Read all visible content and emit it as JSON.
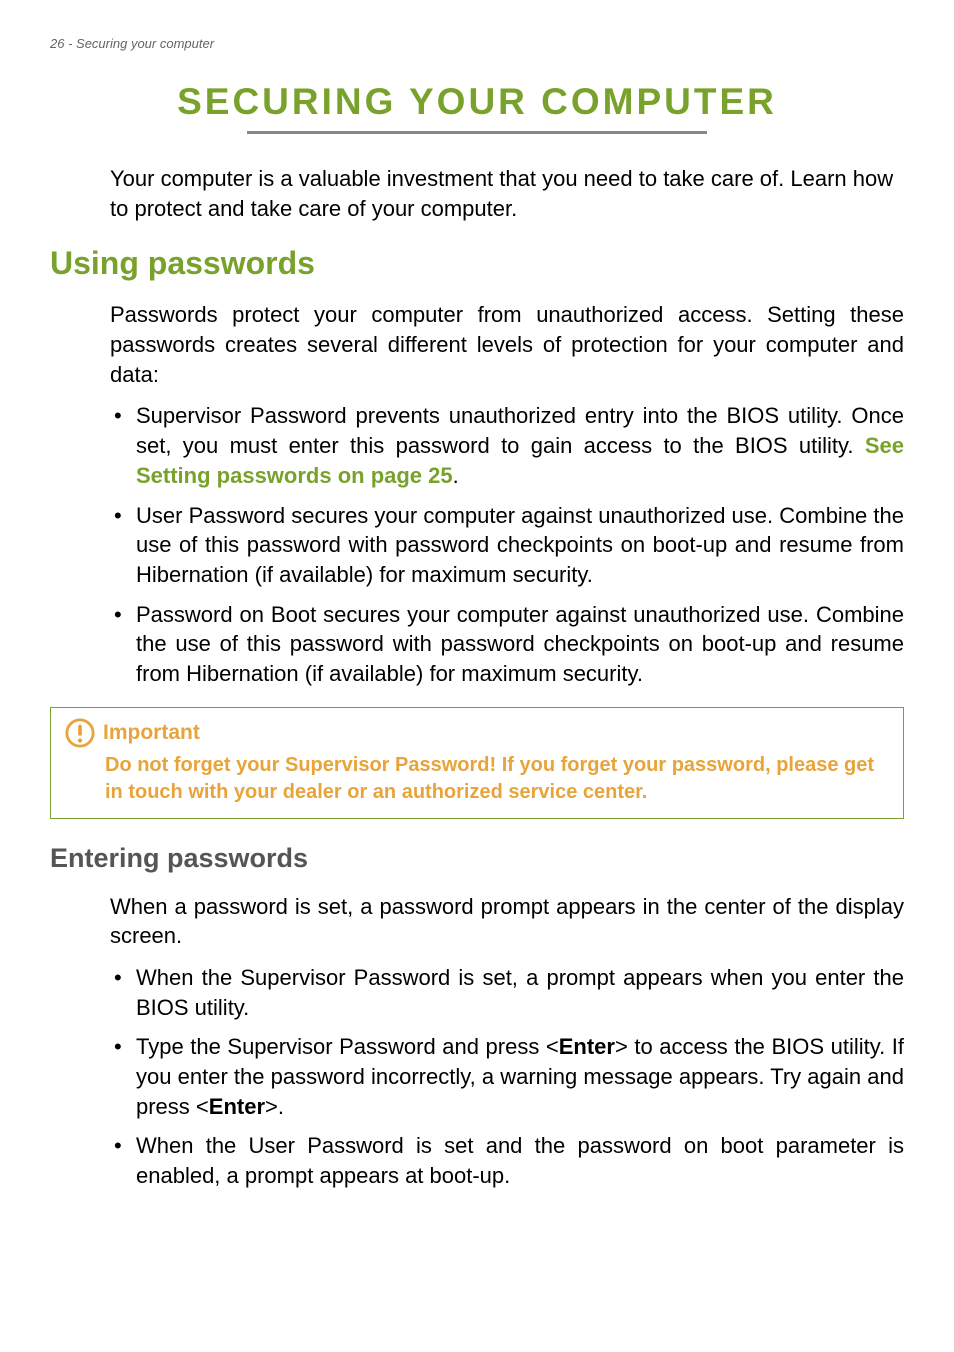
{
  "header": {
    "page_number": "26",
    "section_name": "Securing your computer"
  },
  "title": "SECURING YOUR COMPUTER",
  "intro": "Your computer is a valuable investment that you need to take care of. Learn how to protect and take care of your computer.",
  "section1": {
    "title": "Using passwords",
    "intro": "Passwords protect your computer from unauthorized access. Setting these passwords creates several different levels of protection for your computer and data:",
    "bullets": [
      {
        "pre": "Supervisor Password prevents unauthorized entry into the BIOS utility. Once set, you must enter this password to gain access to the BIOS utility. ",
        "link": "See Setting passwords on page 25",
        "post": "."
      },
      {
        "pre": "User Password secures your computer against unauthorized use. Combine the use of this password with password checkpoints on boot-up and resume from Hibernation (if available) for maximum security.",
        "link": "",
        "post": ""
      },
      {
        "pre": "Password on Boot secures your computer against unauthorized use. Combine the use of this password with password checkpoints on boot-up and resume from Hibernation (if available) for maximum security.",
        "link": "",
        "post": ""
      }
    ]
  },
  "callout": {
    "title": "Important",
    "body": "Do not forget your Supervisor Password! If you forget your password, please get in touch with your dealer or an authorized service center."
  },
  "section2": {
    "title": "Entering passwords",
    "intro": "When a password is set, a password prompt appears in the center of the display screen.",
    "bullets": [
      "When the Supervisor Password is set, a prompt appears when you enter the BIOS utility.",
      "Type the Supervisor Password and press <__B__Enter__B__> to access the BIOS utility. If you enter the password incorrectly, a warning message appears. Try again and press <__B__Enter__B__>.",
      "When the User Password is set and the password on boot parameter is enabled, a prompt appears at boot-up."
    ]
  },
  "colors": {
    "accent_green": "#78a22b",
    "callout_orange": "#e8a43a",
    "header_gray": "#666666",
    "subsection_gray": "#555555"
  }
}
